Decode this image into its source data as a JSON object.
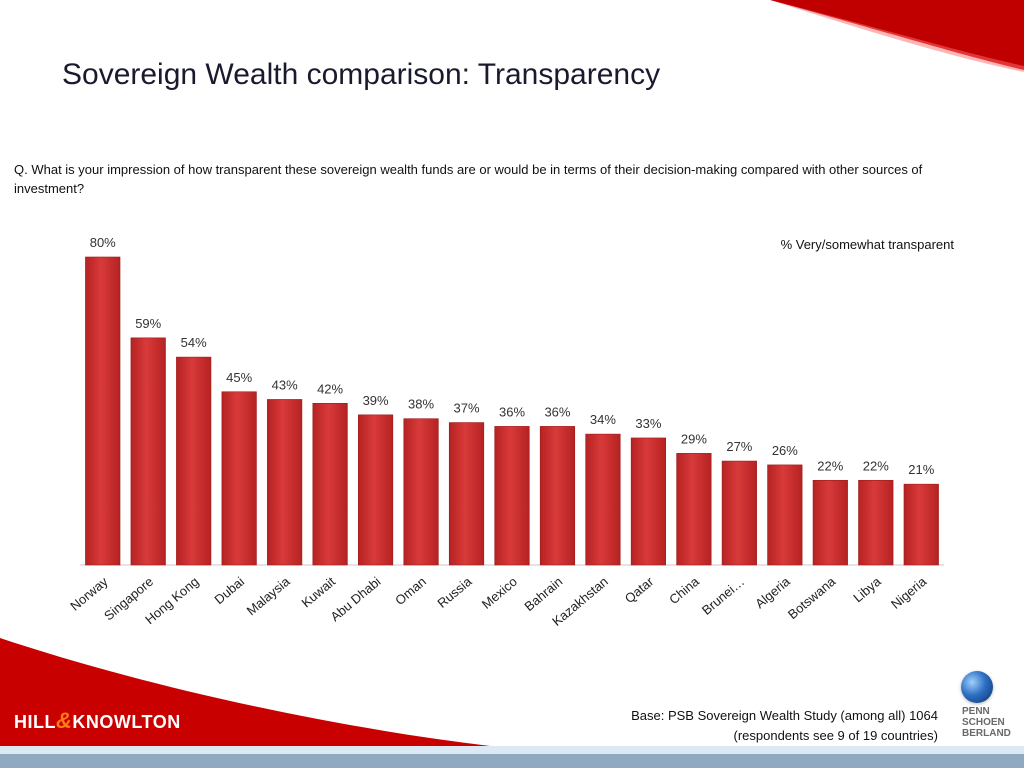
{
  "slide": {
    "title": "Sovereign Wealth comparison: Transparency",
    "question": "Q. What is your impression of how transparent these sovereign wealth funds are or would be in terms of their decision-making compared with other sources of investment?",
    "legend_note": "% Very/somewhat transparent",
    "base_line1": "Base: PSB Sovereign Wealth Study (among all) 1064",
    "base_line2": "(respondents see 9 of 19 countries)",
    "logo_left": {
      "part1": "HILL",
      "amp": "&",
      "part2": "KNOWLTON"
    },
    "logo_right": {
      "lines": [
        "PENN",
        "SCHOEN",
        "BERLAND"
      ]
    }
  },
  "colors": {
    "bar": "#d93a3a",
    "bar_dark": "#b52222",
    "accent_red": "#cc0000"
  },
  "chart_data": {
    "type": "bar",
    "categories": [
      "Norway",
      "Singapore",
      "Hong Kong",
      "Dubai",
      "Malaysia",
      "Kuwait",
      "Abu Dhabi",
      "Oman",
      "Russia",
      "Mexico",
      "Bahrain",
      "Kazakhstan",
      "Qatar",
      "China",
      "Brunei…",
      "Algeria",
      "Botswana",
      "Libya",
      "Nigeria"
    ],
    "values": [
      80,
      59,
      54,
      45,
      43,
      42,
      39,
      38,
      37,
      36,
      36,
      34,
      33,
      29,
      27,
      26,
      22,
      22,
      21
    ],
    "value_labels": [
      "80%",
      "59%",
      "54%",
      "45%",
      "43%",
      "42%",
      "39%",
      "38%",
      "37%",
      "36%",
      "36%",
      "34%",
      "33%",
      "29%",
      "27%",
      "26%",
      "22%",
      "22%",
      "21%"
    ],
    "title": "",
    "xlabel": "",
    "ylabel": "",
    "ylim": [
      0,
      80
    ]
  }
}
